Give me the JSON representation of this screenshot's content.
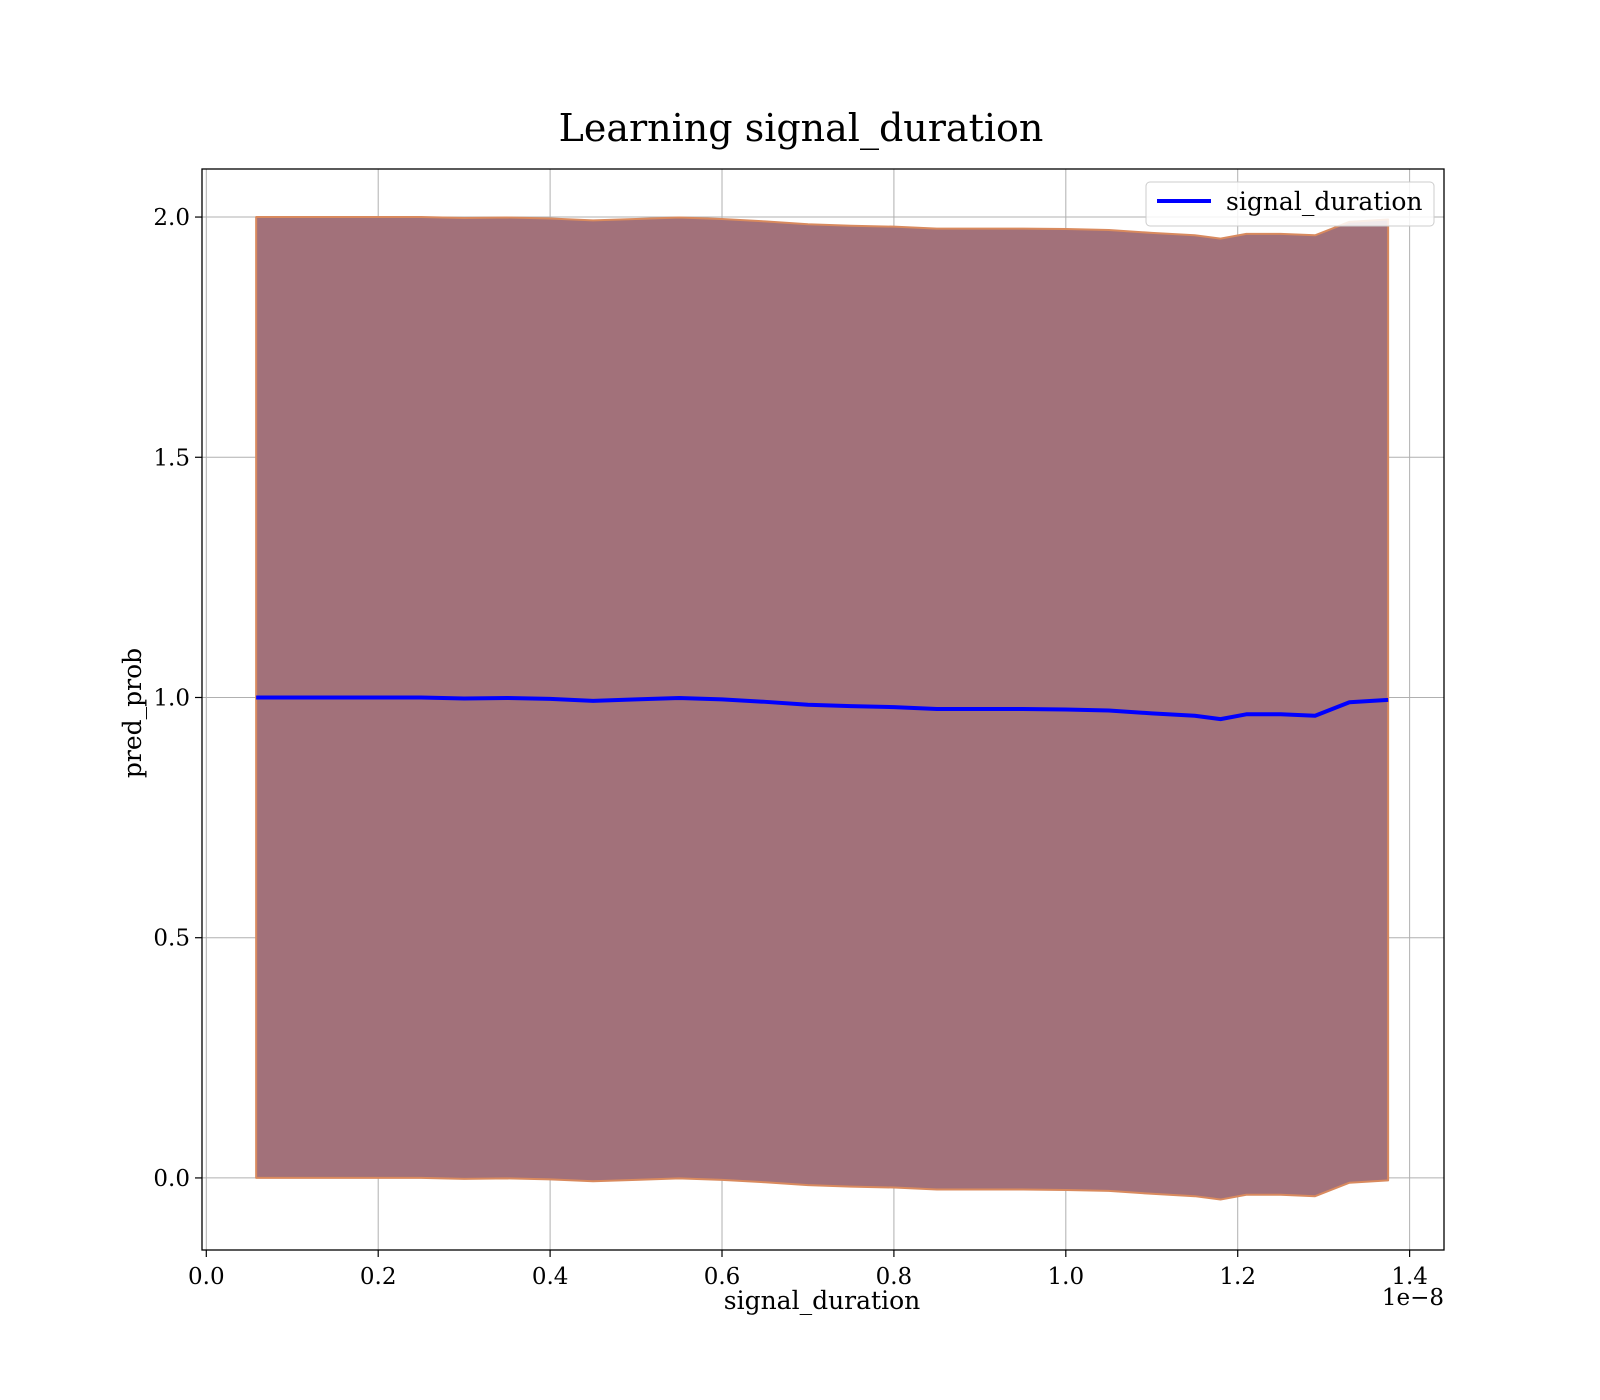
{
  "chart_data": {
    "type": "area",
    "title": "Learning signal_duration",
    "xlabel": "signal_duration",
    "ylabel": "pred_prob",
    "x_offset_text": "1e−8",
    "xlim": [
      -5e-11,
      1.44e-08
    ],
    "ylim": [
      -0.15,
      2.1
    ],
    "x_ticks": [
      0.0,
      2e-09,
      4e-09,
      6e-09,
      8e-09,
      1e-08,
      1.2e-08,
      1.4e-08
    ],
    "x_tick_labels": [
      "0.0",
      "0.2",
      "0.4",
      "0.6",
      "0.8",
      "1.0",
      "1.2",
      "1.4"
    ],
    "y_ticks": [
      0.0,
      0.5,
      1.0,
      1.5,
      2.0
    ],
    "y_tick_labels": [
      "0.0",
      "0.5",
      "1.0",
      "1.5",
      "2.0"
    ],
    "grid": true,
    "legend_position": "top-right",
    "colors": {
      "line": "#0000ff",
      "band_fill": "#a2717a",
      "band_edge": "#d98a5e",
      "grid": "#b0b0b0"
    },
    "series": [
      {
        "name": "signal_duration",
        "x": [
          5.8e-10,
          1e-09,
          1.5e-09,
          2e-09,
          2.5e-09,
          3e-09,
          3.5e-09,
          4e-09,
          4.5e-09,
          5e-09,
          5.5e-09,
          6e-09,
          6.5e-09,
          7e-09,
          7.5e-09,
          8e-09,
          8.5e-09,
          9e-09,
          9.5e-09,
          1e-08,
          1.05e-08,
          1.1e-08,
          1.15e-08,
          1.18e-08,
          1.21e-08,
          1.25e-08,
          1.29e-08,
          1.33e-08,
          1.375e-08
        ],
        "values": [
          1.0,
          1.0,
          1.0,
          1.0,
          1.0,
          0.998,
          0.999,
          0.997,
          0.993,
          0.996,
          0.999,
          0.996,
          0.991,
          0.985,
          0.982,
          0.98,
          0.976,
          0.976,
          0.976,
          0.975,
          0.973,
          0.967,
          0.962,
          0.955,
          0.965,
          0.965,
          0.962,
          0.99,
          0.995
        ],
        "band_lower": [
          0.0,
          0.0,
          0.0,
          0.0,
          0.0,
          -0.002,
          -0.001,
          -0.003,
          -0.007,
          -0.004,
          -0.001,
          -0.004,
          -0.009,
          -0.015,
          -0.018,
          -0.02,
          -0.024,
          -0.024,
          -0.024,
          -0.025,
          -0.027,
          -0.033,
          -0.038,
          -0.045,
          -0.035,
          -0.035,
          -0.038,
          -0.01,
          -0.005
        ],
        "band_upper": [
          2.0,
          2.0,
          2.0,
          2.0,
          2.0,
          1.998,
          1.999,
          1.997,
          1.993,
          1.996,
          1.999,
          1.996,
          1.991,
          1.985,
          1.982,
          1.98,
          1.976,
          1.976,
          1.976,
          1.975,
          1.973,
          1.967,
          1.962,
          1.955,
          1.965,
          1.965,
          1.962,
          1.99,
          1.995
        ]
      }
    ]
  }
}
